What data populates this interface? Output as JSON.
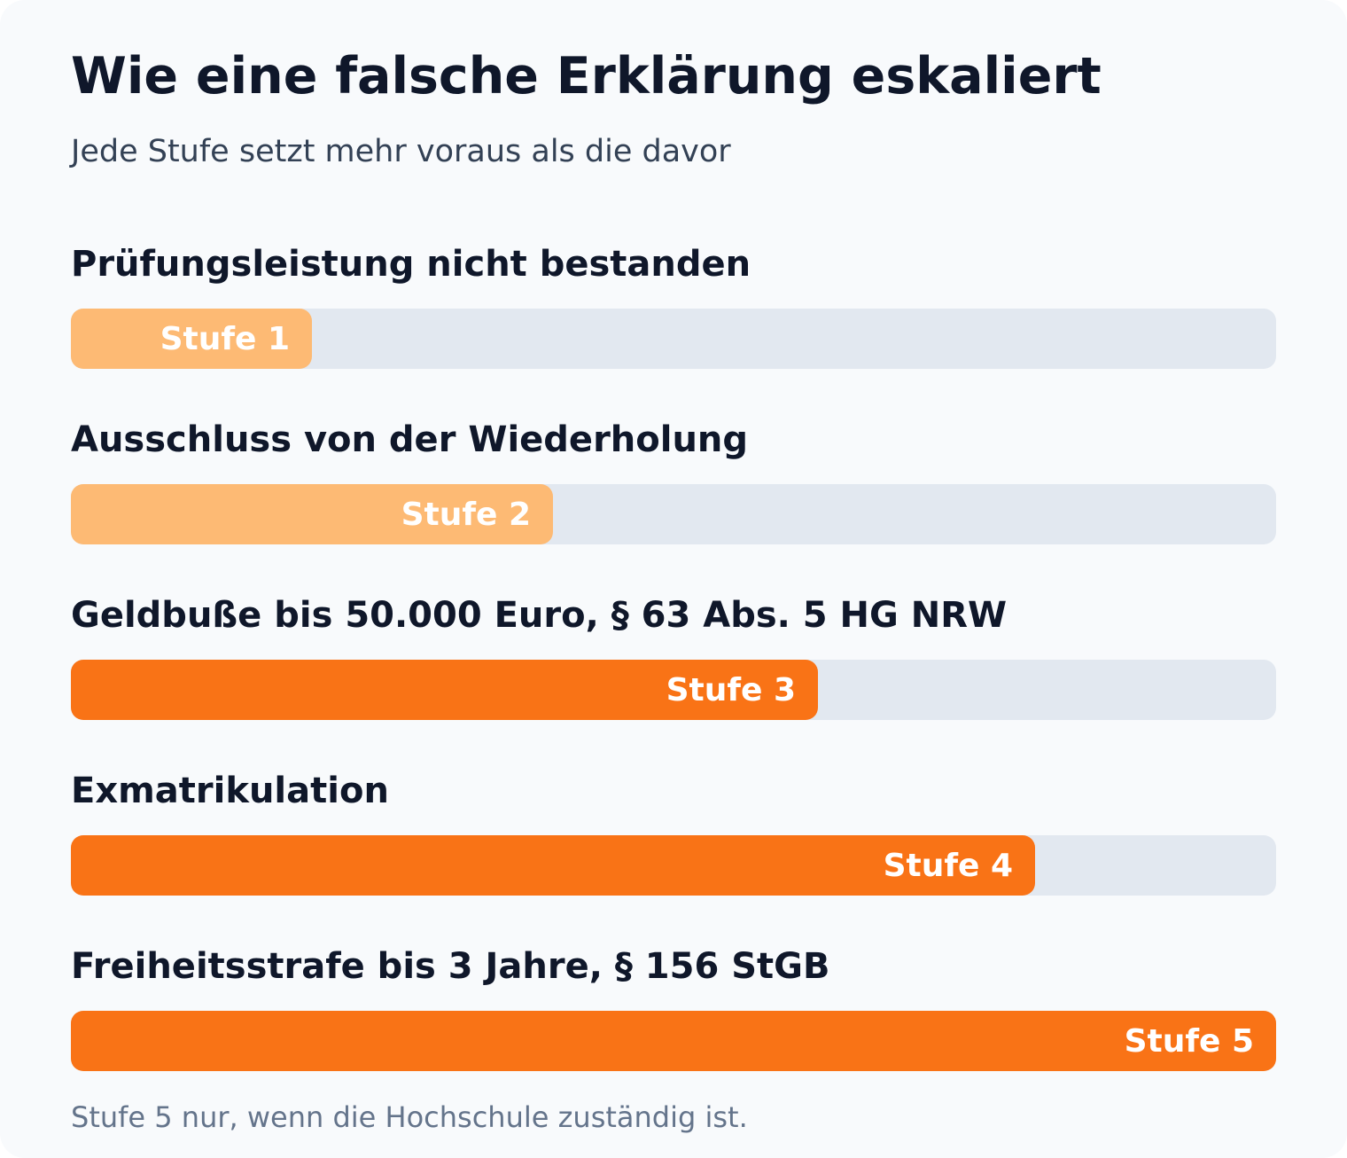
{
  "chart_data": {
    "type": "bar",
    "orientation": "horizontal",
    "title": "Wie eine falsche Erklärung eskaliert",
    "subtitle": "Jede Stufe setzt mehr voraus als die davor",
    "categories": [
      "Prüfungsleistung nicht bestanden",
      "Ausschluss von der Wiederholung",
      "Geldbuße bis 50.000 Euro, § 63 Abs. 5 HG NRW",
      "Exmatrikulation",
      "Freiheitsstrafe bis 3 Jahre, § 156 StGB"
    ],
    "values": [
      1,
      2,
      3,
      4,
      5
    ],
    "bar_labels": [
      "Stufe 1",
      "Stufe 2",
      "Stufe 3",
      "Stufe 4",
      "Stufe 5"
    ],
    "xlim": [
      0,
      5
    ],
    "colors": [
      "#fdba74",
      "#fdba74",
      "#f97316",
      "#f97316",
      "#f97316"
    ],
    "track_color": "#e2e8f0",
    "grid": false,
    "legend": "none"
  },
  "footnote": "Stufe 5 nur, wenn die Hochschule zuständig ist."
}
